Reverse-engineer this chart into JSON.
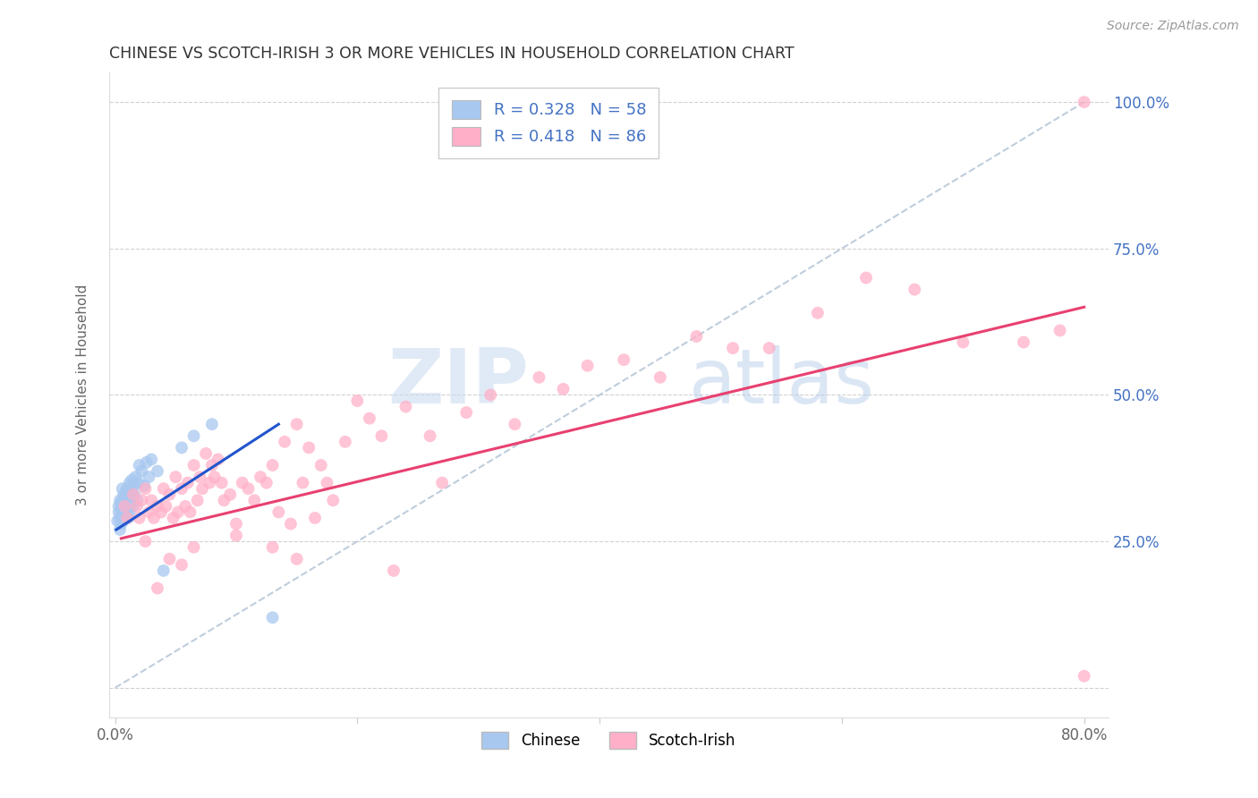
{
  "title": "CHINESE VS SCOTCH-IRISH 3 OR MORE VEHICLES IN HOUSEHOLD CORRELATION CHART",
  "source": "Source: ZipAtlas.com",
  "ylabel": "3 or more Vehicles in Household",
  "xlim": [
    -0.005,
    0.82
  ],
  "ylim": [
    -0.05,
    1.05
  ],
  "xtick_vals": [
    0.0,
    0.2,
    0.4,
    0.6,
    0.8
  ],
  "xticklabels": [
    "0.0%",
    "",
    "",
    "",
    "80.0%"
  ],
  "ytick_labels_right": [
    "25.0%",
    "50.0%",
    "75.0%",
    "100.0%"
  ],
  "ytick_vals_right": [
    0.25,
    0.5,
    0.75,
    1.0
  ],
  "legend_r1": "R = 0.328   N = 58",
  "legend_r2": "R = 0.418   N = 86",
  "chinese_color": "#a8c8f0",
  "scotchirish_color": "#ffb0c8",
  "trend_chinese_color": "#2255cc",
  "trend_scotchirish_color": "#e84070",
  "ref_line_color": "#b8c8d8",
  "legend_text_color": "#4472c4",
  "right_axis_color": "#4472c4",
  "watermark_color": "#d8e8f8",
  "chinese_x": [
    0.002,
    0.003,
    0.003,
    0.004,
    0.004,
    0.004,
    0.005,
    0.005,
    0.005,
    0.005,
    0.006,
    0.006,
    0.006,
    0.006,
    0.007,
    0.007,
    0.007,
    0.007,
    0.008,
    0.008,
    0.008,
    0.008,
    0.009,
    0.009,
    0.009,
    0.009,
    0.01,
    0.01,
    0.01,
    0.01,
    0.011,
    0.011,
    0.011,
    0.012,
    0.012,
    0.012,
    0.013,
    0.013,
    0.014,
    0.014,
    0.015,
    0.015,
    0.016,
    0.017,
    0.018,
    0.019,
    0.02,
    0.022,
    0.024,
    0.026,
    0.028,
    0.03,
    0.035,
    0.04,
    0.055,
    0.065,
    0.08,
    0.13
  ],
  "chinese_y": [
    0.285,
    0.3,
    0.31,
    0.29,
    0.32,
    0.27,
    0.305,
    0.295,
    0.315,
    0.28,
    0.3,
    0.32,
    0.29,
    0.34,
    0.295,
    0.31,
    0.33,
    0.285,
    0.305,
    0.295,
    0.325,
    0.315,
    0.29,
    0.31,
    0.335,
    0.3,
    0.32,
    0.34,
    0.295,
    0.315,
    0.31,
    0.33,
    0.29,
    0.32,
    0.35,
    0.3,
    0.31,
    0.34,
    0.33,
    0.355,
    0.31,
    0.345,
    0.33,
    0.36,
    0.32,
    0.35,
    0.38,
    0.37,
    0.345,
    0.385,
    0.36,
    0.39,
    0.37,
    0.2,
    0.41,
    0.43,
    0.45,
    0.12
  ],
  "scotchirish_x": [
    0.008,
    0.01,
    0.015,
    0.018,
    0.02,
    0.022,
    0.025,
    0.028,
    0.03,
    0.032,
    0.035,
    0.038,
    0.04,
    0.042,
    0.045,
    0.048,
    0.05,
    0.052,
    0.055,
    0.058,
    0.06,
    0.062,
    0.065,
    0.068,
    0.07,
    0.072,
    0.075,
    0.078,
    0.08,
    0.082,
    0.085,
    0.088,
    0.09,
    0.095,
    0.1,
    0.105,
    0.11,
    0.115,
    0.12,
    0.125,
    0.13,
    0.135,
    0.14,
    0.145,
    0.15,
    0.155,
    0.16,
    0.165,
    0.17,
    0.175,
    0.18,
    0.19,
    0.2,
    0.21,
    0.22,
    0.23,
    0.24,
    0.26,
    0.27,
    0.29,
    0.31,
    0.33,
    0.35,
    0.37,
    0.39,
    0.42,
    0.45,
    0.48,
    0.51,
    0.54,
    0.58,
    0.62,
    0.66,
    0.7,
    0.75,
    0.78,
    0.8,
    0.025,
    0.035,
    0.045,
    0.055,
    0.065,
    0.1,
    0.13,
    0.15,
    0.8
  ],
  "scotchirish_y": [
    0.31,
    0.29,
    0.33,
    0.31,
    0.29,
    0.32,
    0.34,
    0.3,
    0.32,
    0.29,
    0.31,
    0.3,
    0.34,
    0.31,
    0.33,
    0.29,
    0.36,
    0.3,
    0.34,
    0.31,
    0.35,
    0.3,
    0.38,
    0.32,
    0.36,
    0.34,
    0.4,
    0.35,
    0.38,
    0.36,
    0.39,
    0.35,
    0.32,
    0.33,
    0.28,
    0.35,
    0.34,
    0.32,
    0.36,
    0.35,
    0.38,
    0.3,
    0.42,
    0.28,
    0.45,
    0.35,
    0.41,
    0.29,
    0.38,
    0.35,
    0.32,
    0.42,
    0.49,
    0.46,
    0.43,
    0.2,
    0.48,
    0.43,
    0.35,
    0.47,
    0.5,
    0.45,
    0.53,
    0.51,
    0.55,
    0.56,
    0.53,
    0.6,
    0.58,
    0.58,
    0.64,
    0.7,
    0.68,
    0.59,
    0.59,
    0.61,
    1.0,
    0.25,
    0.17,
    0.22,
    0.21,
    0.24,
    0.26,
    0.24,
    0.22,
    0.02
  ],
  "trend_chinese_x0": 0.001,
  "trend_chinese_x1": 0.135,
  "trend_chinese_y0": 0.27,
  "trend_chinese_y1": 0.45,
  "trend_scotch_x0": 0.005,
  "trend_scotch_x1": 0.8,
  "trend_scotch_y0": 0.255,
  "trend_scotch_y1": 0.65
}
